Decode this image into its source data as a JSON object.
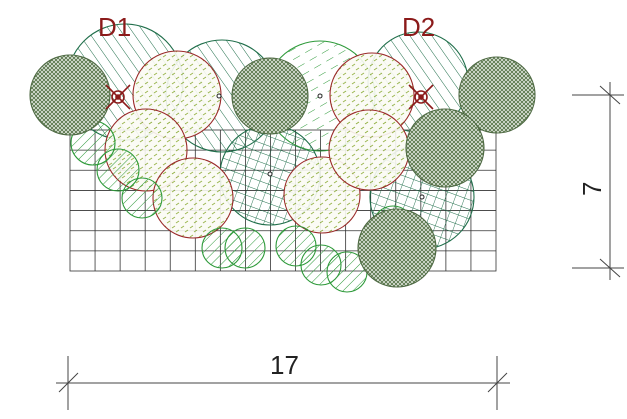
{
  "labels": {
    "d1": "D1",
    "d2": "D2",
    "width_dimension": "17",
    "height_dimension": "7"
  },
  "colors": {
    "label_red": "#8b1a1a",
    "dark_green": "#1f6e4a",
    "light_green": "#2e9a3a",
    "olive": "#6b8a5a",
    "red_outline": "#9a2a2a",
    "grid": "#333333"
  }
}
